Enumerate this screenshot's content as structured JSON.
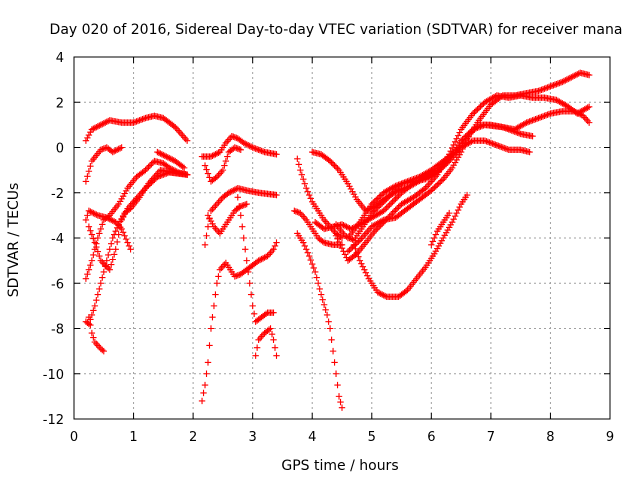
{
  "chart_data": {
    "type": "scatter",
    "title": "Day 020 of 2016, Sidereal Day-to-day VTEC variation (SDTVAR) for receiver mana",
    "xlabel": "GPS time / hours",
    "ylabel": "SDTVAR / TECUs",
    "xlim": [
      0,
      9
    ],
    "ylim": [
      -12,
      4
    ],
    "xticks": [
      "0",
      "1",
      "2",
      "3",
      "4",
      "5",
      "6",
      "7",
      "8",
      "9"
    ],
    "yticks": [
      "-12",
      "-10",
      "-8",
      "-6",
      "-4",
      "-2",
      "0",
      "2",
      "4"
    ],
    "grid": true,
    "marker": "+",
    "color": "#ff0000",
    "series": [
      {
        "values": [
          [
            0.2,
            0.3
          ],
          [
            0.3,
            0.8
          ],
          [
            0.45,
            1.0
          ],
          [
            0.6,
            1.2
          ],
          [
            0.8,
            1.1
          ],
          [
            1.0,
            1.1
          ],
          [
            1.2,
            1.3
          ],
          [
            1.35,
            1.4
          ],
          [
            1.5,
            1.3
          ],
          [
            1.7,
            0.9
          ],
          [
            1.9,
            0.3
          ]
        ]
      },
      {
        "values": [
          [
            0.2,
            -1.5
          ],
          [
            0.3,
            -0.6
          ],
          [
            0.45,
            -0.1
          ],
          [
            0.55,
            0.0
          ],
          [
            0.65,
            -0.2
          ],
          [
            0.8,
            0.0
          ]
        ]
      },
      {
        "values": [
          [
            0.2,
            -3.2
          ],
          [
            0.25,
            -2.8
          ],
          [
            0.4,
            -3.0
          ],
          [
            0.55,
            -3.1
          ],
          [
            0.7,
            -3.3
          ],
          [
            0.8,
            -3.6
          ],
          [
            0.9,
            -4.2
          ],
          [
            0.95,
            -4.5
          ]
        ]
      },
      {
        "values": [
          [
            0.25,
            -3.5
          ],
          [
            0.35,
            -4.2
          ],
          [
            0.45,
            -5.0
          ],
          [
            0.6,
            -5.4
          ],
          [
            0.7,
            -4.5
          ],
          [
            0.8,
            -3.2
          ],
          [
            0.9,
            -2.7
          ],
          [
            1.0,
            -2.4
          ],
          [
            1.2,
            -1.8
          ],
          [
            1.4,
            -1.3
          ],
          [
            1.6,
            -1.1
          ],
          [
            1.9,
            -1.2
          ]
        ]
      },
      {
        "values": [
          [
            0.2,
            -5.8
          ],
          [
            0.3,
            -5.0
          ],
          [
            0.4,
            -4.0
          ],
          [
            0.5,
            -3.2
          ],
          [
            0.6,
            -3.0
          ],
          [
            0.75,
            -2.5
          ],
          [
            0.9,
            -1.8
          ],
          [
            1.05,
            -1.3
          ],
          [
            1.2,
            -1.0
          ],
          [
            1.35,
            -0.6
          ],
          [
            1.5,
            -0.7
          ],
          [
            1.6,
            -0.9
          ],
          [
            1.75,
            -1.1
          ],
          [
            1.9,
            -1.2
          ]
        ]
      },
      {
        "values": [
          [
            0.2,
            -7.7
          ],
          [
            0.25,
            -7.8
          ],
          [
            0.35,
            -7.0
          ],
          [
            0.45,
            -6.0
          ],
          [
            0.55,
            -5.0
          ],
          [
            0.65,
            -4.0
          ],
          [
            0.75,
            -3.4
          ],
          [
            0.85,
            -2.9
          ],
          [
            0.95,
            -2.7
          ],
          [
            1.1,
            -2.2
          ],
          [
            1.25,
            -1.6
          ],
          [
            1.45,
            -1.0
          ],
          [
            1.65,
            -1.1
          ],
          [
            1.9,
            -1.2
          ]
        ]
      },
      {
        "values": [
          [
            0.25,
            -7.5
          ],
          [
            0.3,
            -8.2
          ],
          [
            0.35,
            -8.6
          ],
          [
            0.45,
            -8.9
          ],
          [
            0.5,
            -9.0
          ]
        ]
      },
      {
        "values": [
          [
            1.4,
            -0.2
          ],
          [
            1.55,
            -0.4
          ],
          [
            1.7,
            -0.6
          ],
          [
            1.85,
            -0.9
          ]
        ]
      },
      {
        "values": [
          [
            2.15,
            -0.4
          ],
          [
            2.3,
            -0.4
          ],
          [
            2.45,
            -0.2
          ],
          [
            2.55,
            0.2
          ],
          [
            2.65,
            0.5
          ],
          [
            2.75,
            0.4
          ],
          [
            2.85,
            0.2
          ],
          [
            3.0,
            0.0
          ],
          [
            3.2,
            -0.2
          ],
          [
            3.4,
            -0.3
          ]
        ]
      },
      {
        "values": [
          [
            2.2,
            -0.8
          ],
          [
            2.3,
            -1.5
          ],
          [
            2.4,
            -1.3
          ],
          [
            2.5,
            -1.0
          ],
          [
            2.6,
            -0.2
          ],
          [
            2.7,
            0.0
          ],
          [
            2.8,
            -0.1
          ]
        ]
      },
      {
        "values": [
          [
            2.2,
            -4.3
          ],
          [
            2.25,
            -3.5
          ],
          [
            2.3,
            -2.8
          ],
          [
            2.4,
            -2.5
          ],
          [
            2.5,
            -2.2
          ],
          [
            2.6,
            -2.0
          ],
          [
            2.75,
            -1.8
          ],
          [
            2.9,
            -1.9
          ],
          [
            3.1,
            -2.0
          ],
          [
            3.4,
            -2.1
          ]
        ]
      },
      {
        "values": [
          [
            2.25,
            -3.0
          ],
          [
            2.35,
            -3.5
          ],
          [
            2.45,
            -3.8
          ],
          [
            2.5,
            -3.6
          ],
          [
            2.6,
            -3.2
          ],
          [
            2.7,
            -2.8
          ],
          [
            2.8,
            -2.6
          ],
          [
            2.9,
            -2.5
          ]
        ]
      },
      {
        "values": [
          [
            2.15,
            -11.2
          ],
          [
            2.2,
            -10.5
          ],
          [
            2.25,
            -9.5
          ],
          [
            2.3,
            -8.0
          ],
          [
            2.35,
            -7.0
          ],
          [
            2.4,
            -6.0
          ],
          [
            2.45,
            -5.4
          ],
          [
            2.55,
            -5.1
          ],
          [
            2.7,
            -5.7
          ],
          [
            2.8,
            -5.6
          ],
          [
            2.95,
            -5.3
          ],
          [
            3.1,
            -5.0
          ],
          [
            3.25,
            -4.8
          ],
          [
            3.35,
            -4.5
          ],
          [
            3.4,
            -4.2
          ]
        ]
      },
      {
        "values": [
          [
            2.75,
            -2.2
          ],
          [
            2.8,
            -3.0
          ],
          [
            2.85,
            -4.0
          ],
          [
            2.9,
            -5.0
          ],
          [
            2.95,
            -6.0
          ],
          [
            3.0,
            -7.0
          ],
          [
            3.05,
            -7.7
          ],
          [
            3.15,
            -7.5
          ],
          [
            3.25,
            -7.3
          ],
          [
            3.35,
            -7.3
          ]
        ]
      },
      {
        "values": [
          [
            3.05,
            -9.2
          ],
          [
            3.1,
            -8.5
          ],
          [
            3.2,
            -8.2
          ],
          [
            3.3,
            -8.0
          ],
          [
            3.35,
            -8.5
          ],
          [
            3.4,
            -9.2
          ]
        ]
      },
      {
        "values": [
          [
            3.75,
            -0.5
          ],
          [
            3.8,
            -1.0
          ],
          [
            3.9,
            -1.8
          ],
          [
            4.0,
            -2.4
          ],
          [
            4.1,
            -2.8
          ],
          [
            4.2,
            -3.2
          ],
          [
            4.3,
            -3.5
          ],
          [
            4.4,
            -3.8
          ],
          [
            4.5,
            -4.0
          ]
        ]
      },
      {
        "values": [
          [
            3.7,
            -2.8
          ],
          [
            3.8,
            -2.9
          ],
          [
            3.9,
            -3.2
          ],
          [
            4.0,
            -3.6
          ],
          [
            4.1,
            -4.0
          ],
          [
            4.2,
            -4.2
          ],
          [
            4.35,
            -4.3
          ],
          [
            4.5,
            -4.3
          ]
        ]
      },
      {
        "values": [
          [
            3.75,
            -3.8
          ],
          [
            3.85,
            -4.2
          ],
          [
            3.95,
            -4.8
          ],
          [
            4.05,
            -5.5
          ],
          [
            4.15,
            -6.5
          ],
          [
            4.25,
            -7.4
          ],
          [
            4.3,
            -8.0
          ],
          [
            4.35,
            -9.0
          ],
          [
            4.4,
            -10.0
          ],
          [
            4.45,
            -11.0
          ],
          [
            4.5,
            -11.5
          ]
        ]
      },
      {
        "values": [
          [
            4.0,
            -0.2
          ],
          [
            4.15,
            -0.3
          ],
          [
            4.3,
            -0.6
          ],
          [
            4.45,
            -1.0
          ],
          [
            4.6,
            -1.6
          ],
          [
            4.75,
            -2.3
          ],
          [
            4.9,
            -2.8
          ],
          [
            5.05,
            -2.6
          ],
          [
            5.25,
            -2.2
          ],
          [
            5.45,
            -1.9
          ],
          [
            5.65,
            -1.7
          ],
          [
            5.85,
            -1.4
          ],
          [
            6.0,
            -1.2
          ]
        ]
      },
      {
        "values": [
          [
            4.05,
            -3.3
          ],
          [
            4.2,
            -3.6
          ],
          [
            4.35,
            -3.5
          ],
          [
            4.5,
            -3.4
          ],
          [
            4.65,
            -3.6
          ],
          [
            4.8,
            -3.4
          ],
          [
            5.0,
            -3.1
          ],
          [
            5.2,
            -2.8
          ],
          [
            5.35,
            -2.4
          ],
          [
            5.5,
            -2.0
          ],
          [
            5.7,
            -1.6
          ],
          [
            5.9,
            -1.3
          ],
          [
            6.1,
            -1.0
          ],
          [
            6.3,
            -0.5
          ],
          [
            6.5,
            0.3
          ],
          [
            6.7,
            0.8
          ],
          [
            6.9,
            1.0
          ],
          [
            7.2,
            0.9
          ],
          [
            7.5,
            0.6
          ],
          [
            7.7,
            0.5
          ]
        ]
      },
      {
        "values": [
          [
            4.4,
            -3.4
          ],
          [
            4.55,
            -3.9
          ],
          [
            4.7,
            -4.1
          ],
          [
            4.85,
            -3.5
          ],
          [
            5.0,
            -2.9
          ],
          [
            5.2,
            -2.4
          ],
          [
            5.35,
            -2.0
          ],
          [
            5.5,
            -1.6
          ],
          [
            5.7,
            -1.5
          ],
          [
            5.9,
            -1.4
          ],
          [
            6.1,
            -1.1
          ],
          [
            6.3,
            -0.6
          ],
          [
            6.5,
            0.0
          ],
          [
            6.7,
            0.3
          ],
          [
            6.9,
            0.3
          ],
          [
            7.1,
            0.1
          ],
          [
            7.3,
            -0.1
          ],
          [
            7.5,
            -0.1
          ],
          [
            7.65,
            -0.2
          ]
        ]
      },
      {
        "values": [
          [
            4.6,
            -4.0
          ],
          [
            4.8,
            -3.3
          ],
          [
            5.0,
            -2.5
          ],
          [
            5.2,
            -2.0
          ],
          [
            5.4,
            -1.7
          ],
          [
            5.6,
            -1.5
          ],
          [
            5.8,
            -1.3
          ],
          [
            6.0,
            -1.0
          ],
          [
            6.2,
            -0.6
          ],
          [
            6.4,
            -0.2
          ],
          [
            6.6,
            0.4
          ],
          [
            6.8,
            1.2
          ],
          [
            7.0,
            1.9
          ],
          [
            7.2,
            2.3
          ],
          [
            7.4,
            2.3
          ],
          [
            7.6,
            2.4
          ],
          [
            7.8,
            2.5
          ],
          [
            8.0,
            2.7
          ],
          [
            8.2,
            2.9
          ],
          [
            8.35,
            3.1
          ],
          [
            8.5,
            3.3
          ],
          [
            8.65,
            3.2
          ]
        ]
      },
      {
        "values": [
          [
            4.6,
            -4.6
          ],
          [
            4.8,
            -4.1
          ],
          [
            5.0,
            -3.5
          ],
          [
            5.2,
            -3.2
          ],
          [
            5.4,
            -3.1
          ],
          [
            5.6,
            -2.7
          ],
          [
            5.8,
            -2.3
          ],
          [
            6.0,
            -1.9
          ],
          [
            6.2,
            -1.4
          ],
          [
            6.35,
            -0.9
          ],
          [
            6.5,
            -0.2
          ],
          [
            6.65,
            0.6
          ],
          [
            6.8,
            1.0
          ],
          [
            7.0,
            1.0
          ],
          [
            7.2,
            0.9
          ],
          [
            7.4,
            0.8
          ],
          [
            7.6,
            1.1
          ],
          [
            7.8,
            1.3
          ],
          [
            8.0,
            1.5
          ],
          [
            8.2,
            1.6
          ],
          [
            8.4,
            1.6
          ],
          [
            8.55,
            1.4
          ],
          [
            8.65,
            1.1
          ]
        ]
      },
      {
        "values": [
          [
            4.4,
            -3.9
          ],
          [
            4.6,
            -5.0
          ],
          [
            4.75,
            -4.7
          ],
          [
            4.9,
            -4.2
          ],
          [
            5.05,
            -3.7
          ],
          [
            5.2,
            -3.3
          ],
          [
            5.35,
            -2.9
          ],
          [
            5.5,
            -2.5
          ],
          [
            5.7,
            -2.2
          ],
          [
            5.9,
            -1.8
          ],
          [
            6.1,
            -1.2
          ],
          [
            6.3,
            -0.3
          ],
          [
            6.5,
            0.8
          ],
          [
            6.7,
            1.5
          ],
          [
            6.9,
            2.0
          ],
          [
            7.1,
            2.3
          ],
          [
            7.3,
            2.2
          ],
          [
            7.5,
            2.3
          ],
          [
            7.7,
            2.2
          ],
          [
            7.9,
            2.2
          ],
          [
            8.1,
            2.1
          ],
          [
            8.3,
            1.8
          ],
          [
            8.45,
            1.5
          ],
          [
            8.65,
            1.8
          ]
        ]
      },
      {
        "values": [
          [
            4.7,
            -4.3
          ],
          [
            4.8,
            -5.0
          ],
          [
            4.95,
            -5.8
          ],
          [
            5.1,
            -6.4
          ],
          [
            5.25,
            -6.6
          ],
          [
            5.45,
            -6.6
          ],
          [
            5.6,
            -6.3
          ],
          [
            5.75,
            -5.8
          ],
          [
            5.9,
            -5.3
          ],
          [
            6.05,
            -4.7
          ],
          [
            6.2,
            -4.0
          ],
          [
            6.35,
            -3.3
          ],
          [
            6.5,
            -2.5
          ],
          [
            6.6,
            -2.1
          ]
        ]
      },
      {
        "values": [
          [
            6.0,
            -4.3
          ],
          [
            6.1,
            -3.7
          ],
          [
            6.2,
            -3.3
          ],
          [
            6.3,
            -2.9
          ]
        ]
      }
    ]
  }
}
